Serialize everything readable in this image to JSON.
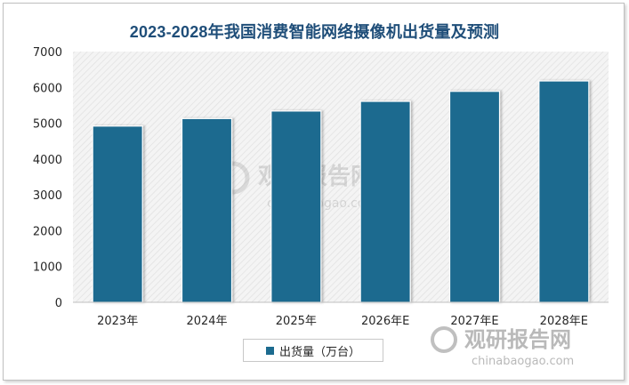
{
  "chart_data": {
    "type": "bar",
    "title": "2023-2028年我国消费智能网络摄像机出货量及预测",
    "categories": [
      "2023年",
      "2024年",
      "2025年",
      "2026年E",
      "2027年E",
      "2028年E"
    ],
    "series": [
      {
        "name": "出货量（万台）",
        "values": [
          4920,
          5130,
          5340,
          5610,
          5890,
          6180
        ]
      }
    ],
    "yticks": [
      "0",
      "1000",
      "2000",
      "3000",
      "4000",
      "5000",
      "6000",
      "7000"
    ],
    "ylim": [
      0,
      7000
    ],
    "legend": "bottom",
    "grid": false,
    "colors": {
      "bar": "#1c6b8f",
      "title": "#1f4e79"
    }
  },
  "watermark": {
    "center_name": "观研报告网",
    "center_url": "chinabaogao.com",
    "corner_name": "观研报告网",
    "corner_url": "chinabaogao.com"
  }
}
